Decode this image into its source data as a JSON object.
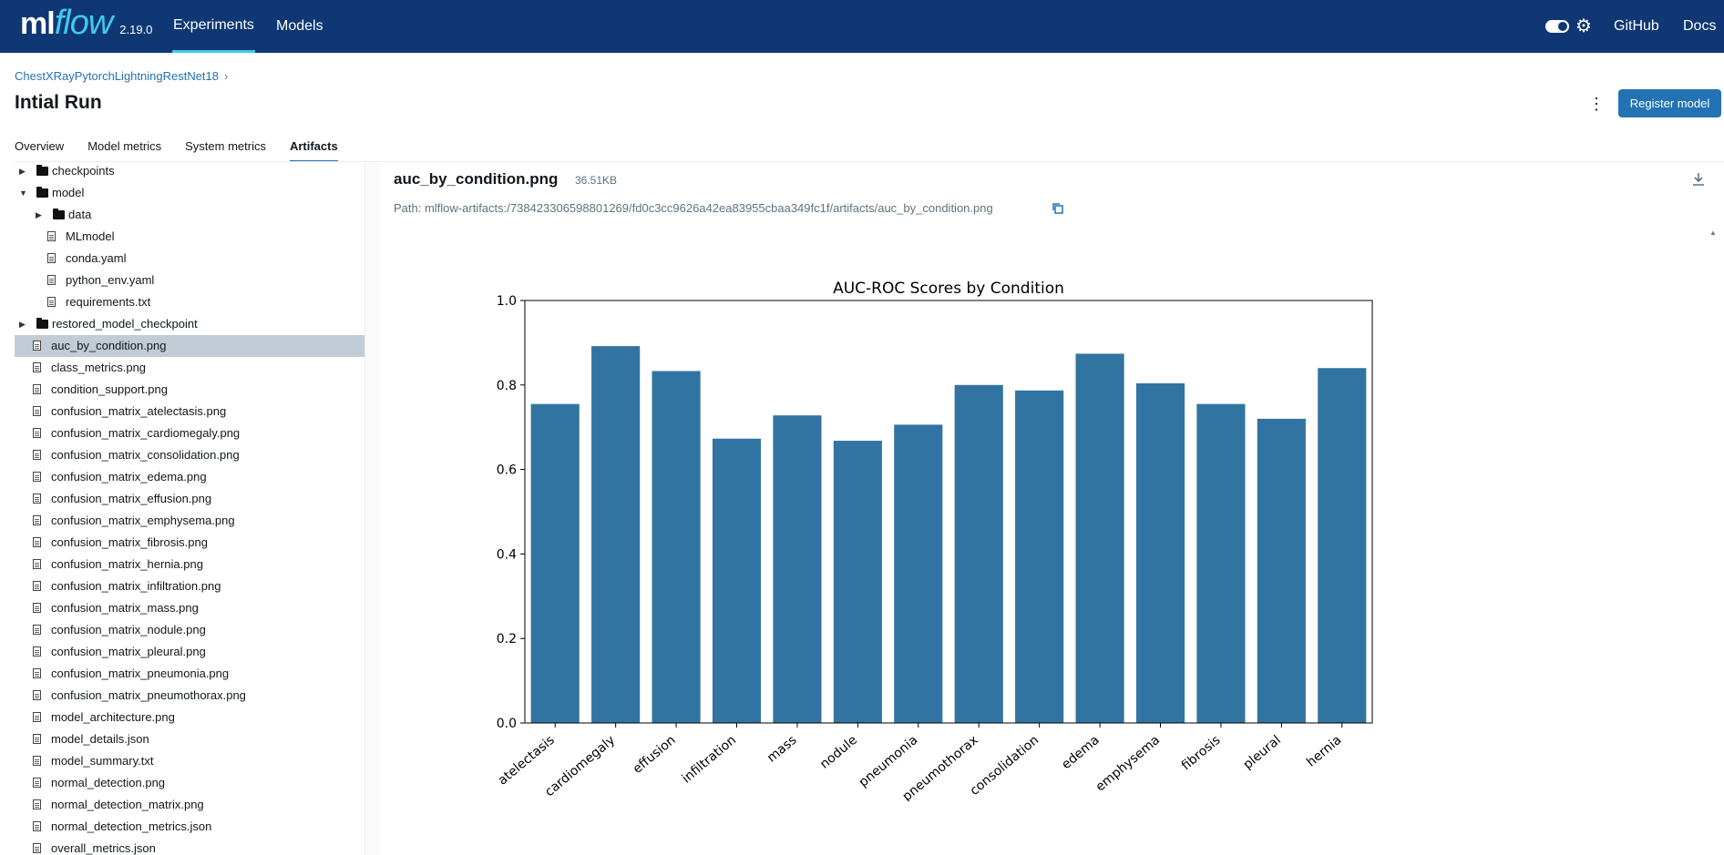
{
  "header": {
    "logo_ml": "ml",
    "logo_flow": "flow",
    "version": "2.19.0",
    "nav": [
      "Experiments",
      "Models"
    ],
    "github": "GitHub",
    "docs": "Docs",
    "icons": [
      "toggle-switch",
      "gear-icon"
    ]
  },
  "run": {
    "breadcrumb": "ChestXRayPytorchLightningRestNet18",
    "breadcrumb_sep": "›",
    "title": "Intial Run",
    "register_label": "Register model",
    "more_glyph": "⋮"
  },
  "tabs": [
    "Overview",
    "Model metrics",
    "System metrics",
    "Artifacts"
  ],
  "tree": [
    {
      "label": "checkpoints",
      "type": "folder",
      "depth": 0,
      "expanded": false
    },
    {
      "label": "model",
      "type": "folder",
      "depth": 0,
      "expanded": true
    },
    {
      "label": "data",
      "type": "folder",
      "depth": 1,
      "expanded": false
    },
    {
      "label": "MLmodel",
      "type": "file",
      "depth": 1
    },
    {
      "label": "conda.yaml",
      "type": "file",
      "depth": 1
    },
    {
      "label": "python_env.yaml",
      "type": "file",
      "depth": 1
    },
    {
      "label": "requirements.txt",
      "type": "file",
      "depth": 1
    },
    {
      "label": "restored_model_checkpoint",
      "type": "folder",
      "depth": 0,
      "expanded": false
    },
    {
      "label": "auc_by_condition.png",
      "type": "file",
      "depth": 0,
      "selected": true
    },
    {
      "label": "class_metrics.png",
      "type": "file",
      "depth": 0
    },
    {
      "label": "condition_support.png",
      "type": "file",
      "depth": 0
    },
    {
      "label": "confusion_matrix_atelectasis.png",
      "type": "file",
      "depth": 0
    },
    {
      "label": "confusion_matrix_cardiomegaly.png",
      "type": "file",
      "depth": 0
    },
    {
      "label": "confusion_matrix_consolidation.png",
      "type": "file",
      "depth": 0
    },
    {
      "label": "confusion_matrix_edema.png",
      "type": "file",
      "depth": 0
    },
    {
      "label": "confusion_matrix_effusion.png",
      "type": "file",
      "depth": 0
    },
    {
      "label": "confusion_matrix_emphysema.png",
      "type": "file",
      "depth": 0
    },
    {
      "label": "confusion_matrix_fibrosis.png",
      "type": "file",
      "depth": 0
    },
    {
      "label": "confusion_matrix_hernia.png",
      "type": "file",
      "depth": 0
    },
    {
      "label": "confusion_matrix_infiltration.png",
      "type": "file",
      "depth": 0
    },
    {
      "label": "confusion_matrix_mass.png",
      "type": "file",
      "depth": 0
    },
    {
      "label": "confusion_matrix_nodule.png",
      "type": "file",
      "depth": 0
    },
    {
      "label": "confusion_matrix_pleural.png",
      "type": "file",
      "depth": 0
    },
    {
      "label": "confusion_matrix_pneumonia.png",
      "type": "file",
      "depth": 0
    },
    {
      "label": "confusion_matrix_pneumothorax.png",
      "type": "file",
      "depth": 0
    },
    {
      "label": "model_architecture.png",
      "type": "file",
      "depth": 0
    },
    {
      "label": "model_details.json",
      "type": "file",
      "depth": 0
    },
    {
      "label": "model_summary.txt",
      "type": "file",
      "depth": 0
    },
    {
      "label": "normal_detection.png",
      "type": "file",
      "depth": 0
    },
    {
      "label": "normal_detection_matrix.png",
      "type": "file",
      "depth": 0
    },
    {
      "label": "normal_detection_metrics.json",
      "type": "file",
      "depth": 0
    },
    {
      "label": "overall_metrics.json",
      "type": "file",
      "depth": 0
    }
  ],
  "viewer": {
    "filename": "auc_by_condition.png",
    "size": "36.51KB",
    "path": "Path: mlflow-artifacts:/738423306598801269/fd0c3cc9626a42ea83955cbaa349fc1f/artifacts/auc_by_condition.png",
    "icons": [
      "download-icon",
      "copy-icon"
    ]
  },
  "chart_data": {
    "type": "bar",
    "title": "AUC-ROC Scores by Condition",
    "xlabel": "",
    "ylabel": "",
    "categories": [
      "atelectasis",
      "cardiomegaly",
      "effusion",
      "infiltration",
      "mass",
      "nodule",
      "pneumonia",
      "pneumothorax",
      "consolidation",
      "edema",
      "emphysema",
      "fibrosis",
      "pleural",
      "hernia"
    ],
    "values": [
      0.755,
      0.892,
      0.833,
      0.673,
      0.728,
      0.668,
      0.706,
      0.8,
      0.787,
      0.874,
      0.804,
      0.755,
      0.72,
      0.84
    ],
    "ylim": [
      0,
      1.0
    ],
    "yticks": [
      "0.0",
      "0.2",
      "0.4",
      "0.6",
      "0.8",
      "1.0"
    ],
    "bar_color": "#3274a1",
    "grid": false
  }
}
